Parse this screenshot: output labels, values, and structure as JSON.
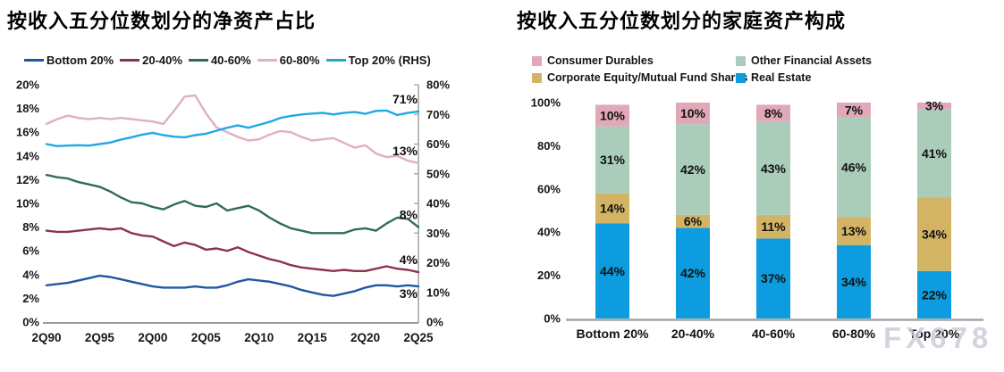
{
  "watermark": "FX678",
  "chart_data": [
    {
      "type": "line",
      "title": "按收入五分位数划分的净资产占比",
      "x_tick_labels": [
        "2Q90",
        "2Q95",
        "2Q00",
        "2Q05",
        "2Q10",
        "2Q15",
        "2Q20",
        "2Q25"
      ],
      "x_start_year": 1990,
      "x_end_year": 2025,
      "left_axis": {
        "min": 0,
        "max": 20,
        "step": 2,
        "suffix": "%"
      },
      "right_axis": {
        "min": 0,
        "max": 80,
        "step": 10,
        "suffix": "%"
      },
      "grid": false,
      "legend_position": "top",
      "series": [
        {
          "name": "Bottom 20%",
          "color": "#1d57a5",
          "axis": "left",
          "end_label": "3%",
          "end_side": "below",
          "values": [
            3.1,
            3.2,
            3.3,
            3.5,
            3.7,
            3.9,
            3.8,
            3.6,
            3.4,
            3.2,
            3.0,
            2.9,
            2.9,
            2.9,
            3.0,
            2.9,
            2.9,
            3.1,
            3.4,
            3.6,
            3.5,
            3.4,
            3.2,
            3.0,
            2.7,
            2.5,
            2.3,
            2.2,
            2.4,
            2.6,
            2.9,
            3.1,
            3.1,
            3.0,
            3.1,
            3.0
          ]
        },
        {
          "name": "20-40%",
          "color": "#8e3150",
          "axis": "left",
          "end_label": "4%",
          "end_side": "above",
          "values": [
            7.7,
            7.6,
            7.6,
            7.7,
            7.8,
            7.9,
            7.8,
            7.9,
            7.5,
            7.3,
            7.2,
            6.8,
            6.4,
            6.7,
            6.5,
            6.1,
            6.2,
            6.0,
            6.3,
            5.9,
            5.6,
            5.3,
            5.1,
            4.8,
            4.6,
            4.5,
            4.4,
            4.3,
            4.4,
            4.3,
            4.3,
            4.5,
            4.7,
            4.5,
            4.4,
            4.2
          ]
        },
        {
          "name": "40-60%",
          "color": "#2f6e52",
          "axis": "left",
          "end_label": "8%",
          "end_side": "above",
          "values": [
            12.4,
            12.2,
            12.1,
            11.8,
            11.6,
            11.4,
            11.0,
            10.5,
            10.1,
            10.0,
            9.7,
            9.5,
            9.9,
            10.2,
            9.8,
            9.7,
            10.0,
            9.4,
            9.6,
            9.8,
            9.4,
            8.8,
            8.3,
            7.9,
            7.7,
            7.5,
            7.5,
            7.5,
            7.5,
            7.8,
            7.9,
            7.7,
            8.3,
            8.8,
            8.7,
            8.0
          ]
        },
        {
          "name": "60-80%",
          "color": "#dfb0c3",
          "axis": "left",
          "end_label": "13%",
          "end_side": "above",
          "values": [
            16.7,
            17.1,
            17.4,
            17.2,
            17.1,
            17.2,
            17.1,
            17.2,
            17.1,
            17.0,
            16.9,
            16.7,
            17.8,
            19.0,
            19.1,
            17.6,
            16.4,
            16.0,
            15.6,
            15.3,
            15.4,
            15.8,
            16.1,
            16.0,
            15.6,
            15.3,
            15.4,
            15.5,
            15.1,
            14.7,
            14.9,
            14.2,
            13.9,
            14.0,
            13.6,
            13.4
          ]
        },
        {
          "name": "Top 20% (RHS)",
          "color": "#22a7e5",
          "axis": "right",
          "end_label": "71%",
          "end_side": "above",
          "values": [
            60.0,
            59.3,
            59.5,
            59.6,
            59.5,
            60.0,
            60.5,
            61.5,
            62.3,
            63.2,
            63.8,
            63.0,
            62.5,
            62.3,
            63.0,
            63.5,
            64.5,
            65.5,
            66.3,
            65.5,
            66.5,
            67.5,
            68.8,
            69.5,
            70.0,
            70.3,
            70.5,
            70.0,
            70.5,
            70.8,
            70.2,
            71.2,
            71.3,
            69.8,
            70.5,
            71.0
          ]
        }
      ]
    },
    {
      "type": "stacked_bar",
      "title": "按收入五分位数划分的家庭资产构成",
      "categories": [
        "Bottom 20%",
        "20-40%",
        "40-60%",
        "60-80%",
        "Top 20%"
      ],
      "y_axis": {
        "min": 0,
        "max": 100,
        "step": 20,
        "suffix": "%"
      },
      "grid": false,
      "legend_position": "top",
      "value_label_suffix": "%",
      "series": [
        {
          "name": "Real Estate",
          "color": "#0d9cdf",
          "values": [
            44,
            42,
            37,
            34,
            22
          ]
        },
        {
          "name": "Corporate Equity/Mutual Fund Shares",
          "color": "#d3b465",
          "values": [
            14,
            6,
            11,
            13,
            34
          ]
        },
        {
          "name": "Other Financial Assets",
          "color": "#a9ccbb",
          "values": [
            31,
            42,
            43,
            46,
            41
          ]
        },
        {
          "name": "Consumer Durables",
          "color": "#e1a9b7",
          "values": [
            10,
            10,
            8,
            7,
            3
          ]
        }
      ]
    }
  ]
}
